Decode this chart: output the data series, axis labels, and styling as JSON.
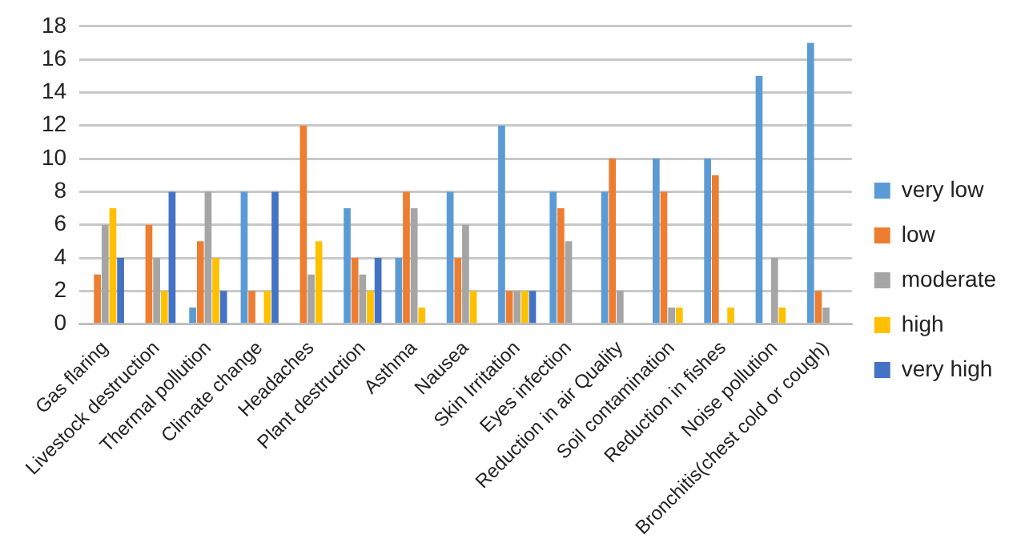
{
  "chart_data": {
    "type": "bar",
    "categories": [
      "Gas flaring",
      "Livestock destruction",
      "Thermal pollution",
      "Climate change",
      "Headaches",
      "Plant destruction",
      "Asthma",
      "Nausea",
      "Skin Irritation",
      "Eyes infection",
      "Reduction in air Quality",
      "Soil contamination",
      "Reduction in fishes",
      "Noise pollution",
      "Bronchitis(chest cold or cough)"
    ],
    "series": [
      {
        "name": "very low",
        "color": "#5b9bd5",
        "values": [
          0,
          0,
          1,
          8,
          0,
          7,
          4,
          8,
          12,
          8,
          8,
          10,
          10,
          15,
          17
        ]
      },
      {
        "name": "low",
        "color": "#ed7d31",
        "values": [
          3,
          6,
          5,
          2,
          12,
          4,
          8,
          4,
          2,
          7,
          10,
          8,
          9,
          0,
          2
        ]
      },
      {
        "name": "moderate",
        "color": "#a5a5a5",
        "values": [
          6,
          4,
          8,
          0,
          3,
          3,
          7,
          6,
          2,
          5,
          2,
          1,
          0,
          4,
          1
        ]
      },
      {
        "name": "high",
        "color": "#ffc000",
        "values": [
          7,
          2,
          4,
          2,
          5,
          2,
          1,
          2,
          2,
          0,
          0,
          1,
          1,
          1,
          0
        ]
      },
      {
        "name": "very high",
        "color": "#4472c4",
        "values": [
          4,
          8,
          2,
          8,
          0,
          4,
          0,
          0,
          2,
          0,
          0,
          0,
          0,
          0,
          0
        ]
      }
    ],
    "ylim": [
      0,
      18
    ],
    "yticks": [
      0,
      2,
      4,
      6,
      8,
      10,
      12,
      14,
      16,
      18
    ],
    "grid": "y",
    "legend": "right"
  }
}
